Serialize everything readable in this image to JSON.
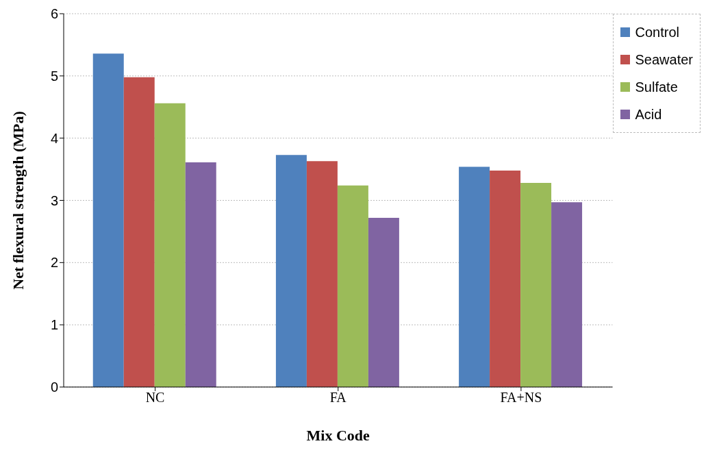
{
  "chart_data": {
    "type": "bar",
    "xlabel": "Mix Code",
    "ylabel": "Net flexural strength (MPa)",
    "categories": [
      "NC",
      "FA",
      "FA+NS"
    ],
    "series": [
      {
        "name": "Control",
        "color": "#4f81bd",
        "values": [
          5.36,
          3.73,
          3.54
        ]
      },
      {
        "name": "Seawater",
        "color": "#c0504d",
        "values": [
          4.98,
          3.63,
          3.48
        ]
      },
      {
        "name": "Sulfate",
        "color": "#9bbb59",
        "values": [
          4.56,
          3.24,
          3.28
        ]
      },
      {
        "name": "Acid",
        "color": "#8064a2",
        "values": [
          3.61,
          2.72,
          2.97
        ]
      }
    ],
    "ylim": [
      0,
      6
    ],
    "yticks": [
      0,
      1,
      2,
      3,
      4,
      5,
      6
    ],
    "grid": "y",
    "legend": "top right"
  }
}
